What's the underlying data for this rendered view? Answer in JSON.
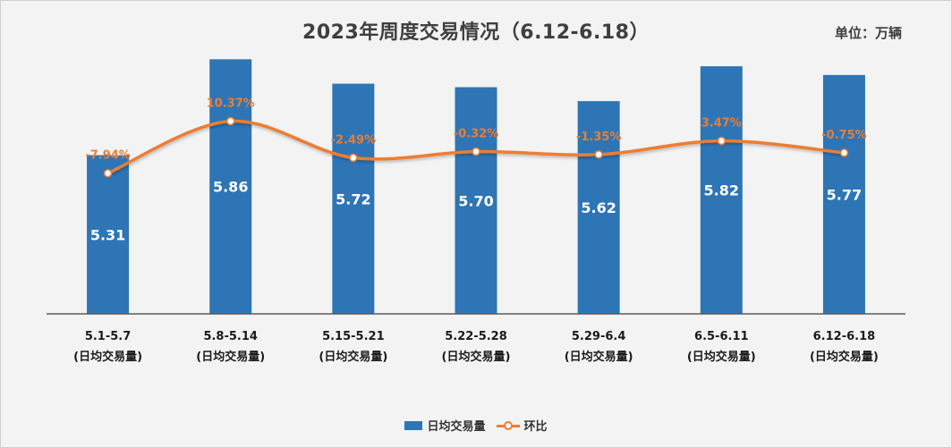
{
  "chart_data": {
    "type": "bar",
    "title": "2023年周度交易情况（6.12-6.18）",
    "unit_label": "单位：万辆",
    "categories": [
      {
        "line1": "5.1-5.7",
        "line2": "(日均交易量)"
      },
      {
        "line1": "5.8-5.14",
        "line2": "(日均交易量)"
      },
      {
        "line1": "5.15-5.21",
        "line2": "(日均交易量)"
      },
      {
        "line1": "5.22-5.28",
        "line2": "(日均交易量)"
      },
      {
        "line1": "5.29-6.4",
        "line2": "(日均交易量)"
      },
      {
        "line1": "6.5-6.11",
        "line2": "(日均交易量)"
      },
      {
        "line1": "6.12-6.18",
        "line2": "(日均交易量)"
      }
    ],
    "series": [
      {
        "name": "日均交易量",
        "type": "bar",
        "color": "#2e75b6",
        "values": [
          5.31,
          5.86,
          5.72,
          5.7,
          5.62,
          5.82,
          5.77
        ],
        "labels": [
          "5.31",
          "5.86",
          "5.72",
          "5.70",
          "5.62",
          "5.82",
          "5.77"
        ]
      },
      {
        "name": "环比",
        "type": "line",
        "color": "#ed7d31",
        "values": [
          -7.94,
          10.37,
          -2.49,
          -0.32,
          -1.35,
          3.47,
          -0.75
        ],
        "labels": [
          "-7.94%",
          "10.37%",
          "-2.49%",
          "-0.32%",
          "-1.35%",
          "3.47%",
          "-0.75%"
        ]
      }
    ],
    "legend_position": "bottom",
    "grid": false
  }
}
